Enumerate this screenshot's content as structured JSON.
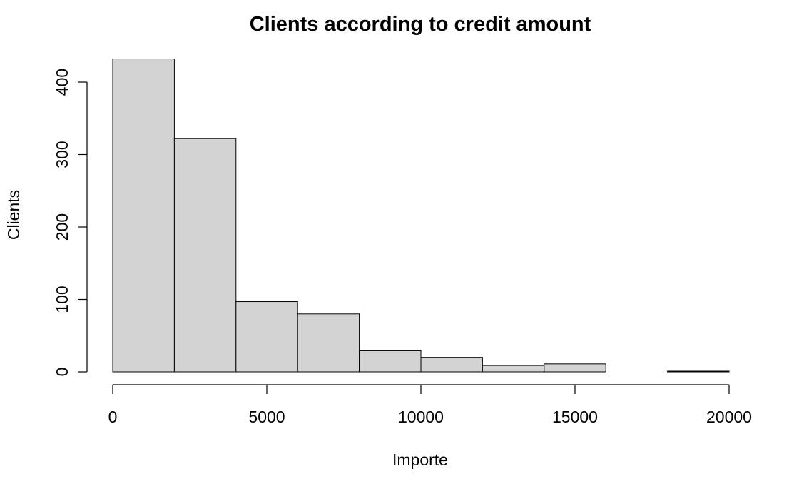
{
  "chart_data": {
    "type": "bar",
    "title": "Clients according to credit amount",
    "xlabel": "Importe",
    "ylabel": "Clients",
    "bins": [
      {
        "from": 0,
        "to": 2000,
        "value": 432
      },
      {
        "from": 2000,
        "to": 4000,
        "value": 322
      },
      {
        "from": 4000,
        "to": 6000,
        "value": 97
      },
      {
        "from": 6000,
        "to": 8000,
        "value": 80
      },
      {
        "from": 8000,
        "to": 10000,
        "value": 30
      },
      {
        "from": 10000,
        "to": 12000,
        "value": 20
      },
      {
        "from": 12000,
        "to": 14000,
        "value": 9
      },
      {
        "from": 14000,
        "to": 16000,
        "value": 11
      },
      {
        "from": 16000,
        "to": 18000,
        "value": 0
      },
      {
        "from": 18000,
        "to": 20000,
        "value": 1
      }
    ],
    "xlim": [
      0,
      20000
    ],
    "ylim": [
      0,
      400
    ],
    "x_ticks": [
      "0",
      "5000",
      "10000",
      "15000",
      "20000"
    ],
    "y_ticks": [
      "0",
      "100",
      "200",
      "300",
      "400"
    ],
    "grid": false,
    "bar_color": "#d3d3d3",
    "edge_color": "#000000"
  }
}
